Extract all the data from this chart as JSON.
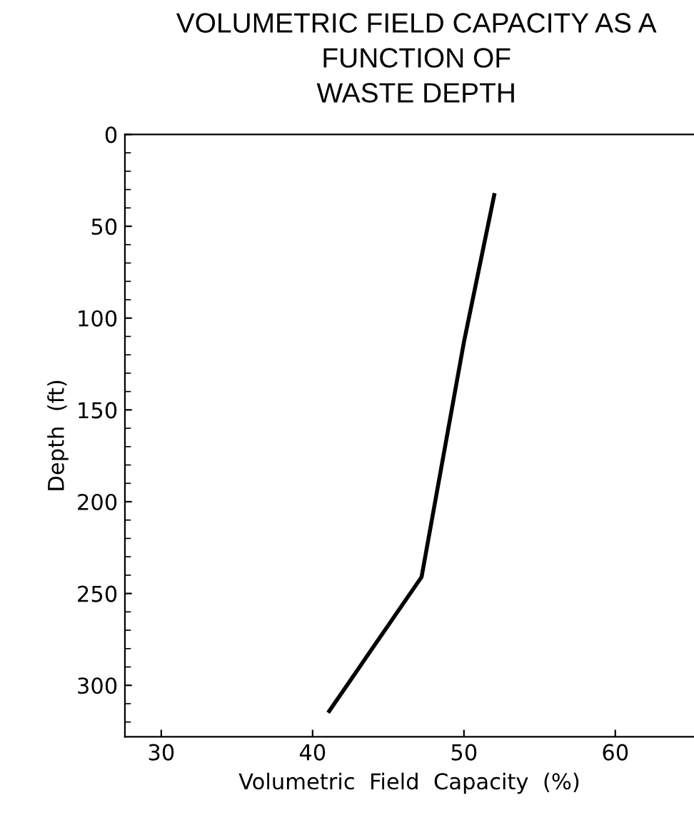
{
  "chart_data": {
    "type": "line",
    "title": "VOLUMETRIC FIELD CAPACITY AS A\nFUNCTION OF\nWASTE DEPTH",
    "xlabel": "Volumetric  Field  Capacity  (%)",
    "ylabel": "Depth  (ft)",
    "x": [
      41.1,
      47.2,
      50.0,
      52.0
    ],
    "series": [
      {
        "color": "#000000",
        "values": [
          314,
          241,
          113,
          33
        ]
      }
    ],
    "xlim": [
      27.6,
      65.2
    ],
    "xticks": [
      30,
      40,
      50,
      60
    ],
    "ylim": [
      328,
      0
    ],
    "yticks": [
      0,
      50,
      100,
      150,
      200,
      250,
      300
    ],
    "grid": false,
    "legend": false,
    "marker": "none",
    "line_style": "solid"
  }
}
